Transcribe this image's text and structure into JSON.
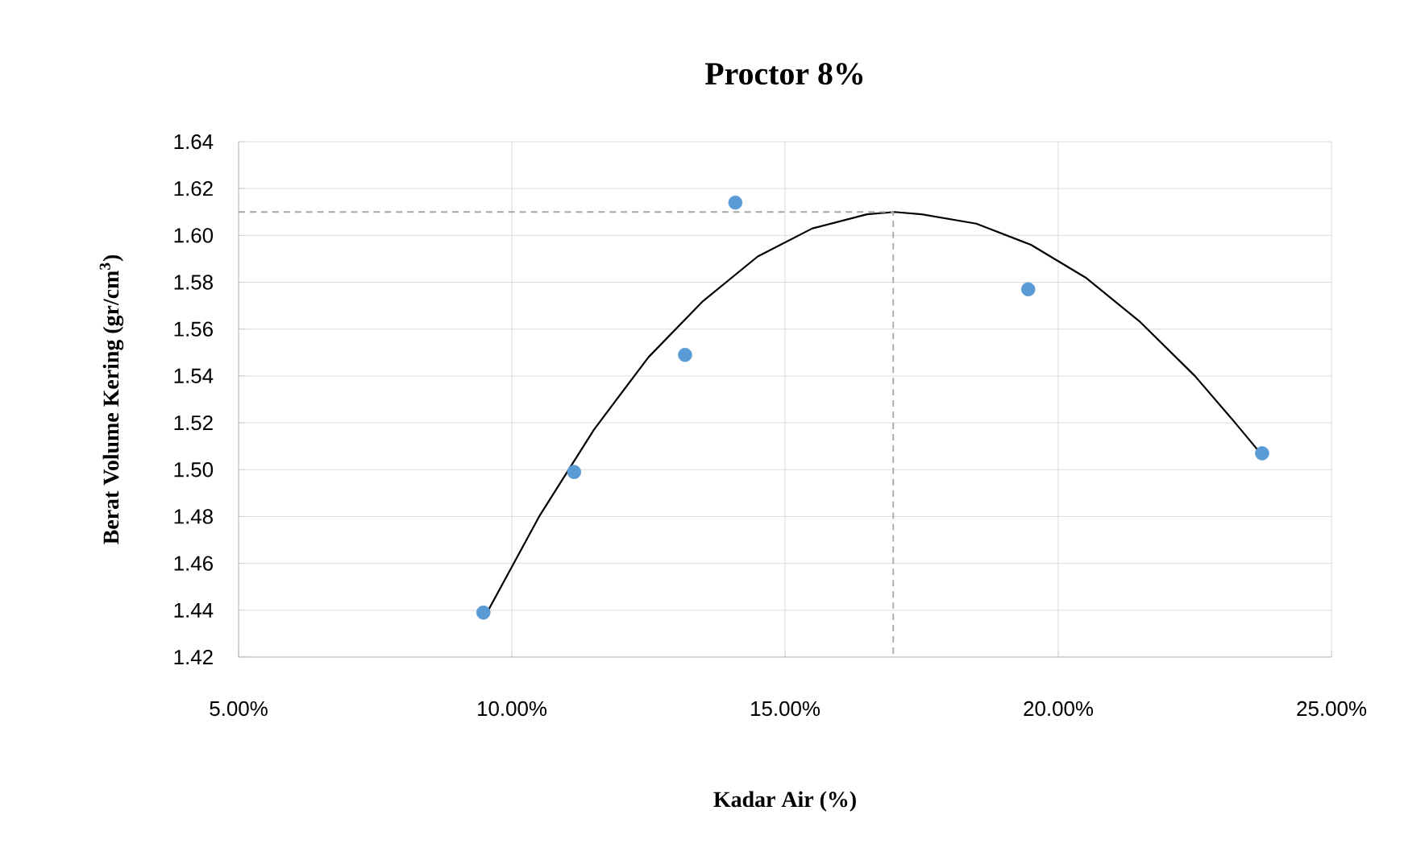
{
  "chart_data": {
    "type": "scatter",
    "title": "Proctor 8%",
    "xlabel": "Kadar Air (%)",
    "ylabel": "Berat Volume Kering (gr/cm$^{3}$)",
    "xlim": [
      5,
      25
    ],
    "xticks": [
      {
        "value": 5,
        "label": "5.00%"
      },
      {
        "value": 10,
        "label": "10.00%"
      },
      {
        "value": 15,
        "label": "15.00%"
      },
      {
        "value": 20,
        "label": "20.00%"
      },
      {
        "value": 25,
        "label": "25.00%"
      }
    ],
    "ylim": [
      1.42,
      1.64
    ],
    "yticks": [
      {
        "value": 1.42,
        "label": "1.42"
      },
      {
        "value": 1.44,
        "label": "1.44"
      },
      {
        "value": 1.46,
        "label": "1.46"
      },
      {
        "value": 1.48,
        "label": "1.48"
      },
      {
        "value": 1.5,
        "label": "1.50"
      },
      {
        "value": 1.52,
        "label": "1.52"
      },
      {
        "value": 1.54,
        "label": "1.54"
      },
      {
        "value": 1.56,
        "label": "1.56"
      },
      {
        "value": 1.58,
        "label": "1.58"
      },
      {
        "value": 1.6,
        "label": "1.60"
      },
      {
        "value": 1.62,
        "label": "1.62"
      },
      {
        "value": 1.64,
        "label": "1.64"
      }
    ],
    "grid": true,
    "series": [
      {
        "type": "scatter",
        "color": "#5b9bd5",
        "marker": "circle",
        "x": [
          9.48,
          11.14,
          13.17,
          14.09,
          19.45,
          23.73
        ],
        "values": [
          1.439,
          1.499,
          1.549,
          1.614,
          1.577,
          1.507
        ]
      },
      {
        "type": "line",
        "color": "#000000",
        "marker": "none",
        "line_style": "solid",
        "x": [
          9.5,
          10.5,
          11.5,
          12.5,
          13.5,
          14.5,
          15.5,
          16.5,
          17,
          17.5,
          18.5,
          19.5,
          20.5,
          21.5,
          22.5,
          23.2,
          23.7
        ],
        "values": [
          1.437,
          1.48,
          1.517,
          1.548,
          1.572,
          1.591,
          1.603,
          1.609,
          1.61,
          1.609,
          1.605,
          1.596,
          1.582,
          1.563,
          1.54,
          1.521,
          1.507
        ]
      },
      {
        "type": "line",
        "color": "#a6a6a6",
        "marker": "none",
        "line_style": "dashed",
        "x": [
          5,
          16.98,
          16.98
        ],
        "values": [
          1.61,
          1.61,
          1.42
        ]
      }
    ]
  }
}
